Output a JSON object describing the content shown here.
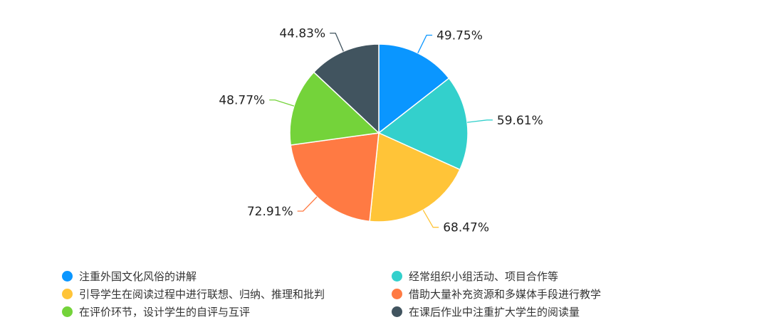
{
  "chart_data": {
    "type": "pie",
    "legend_position": "bottom",
    "series": [
      {
        "name": "注重外国文化风俗的讲解",
        "value": 49.75,
        "label": "49.75%",
        "color": "#0a96ff"
      },
      {
        "name": "经常组织小组活动、项目合作等",
        "value": 59.61,
        "label": "59.61%",
        "color": "#33d0cc"
      },
      {
        "name": "引导学生在阅读过程中进行联想、归纳、推理和批判",
        "value": 68.47,
        "label": "68.47%",
        "color": "#ffc438"
      },
      {
        "name": "借助大量补充资源和多媒体手段进行教学",
        "value": 72.91,
        "label": "72.91%",
        "color": "#ff7a43"
      },
      {
        "name": "在评价环节，设计学生的自评与互评",
        "value": 48.77,
        "label": "48.77%",
        "color": "#74d33a"
      },
      {
        "name": "在课后作业中注重扩大学生的阅读量",
        "value": 44.83,
        "label": "44.83%",
        "color": "#41545f"
      }
    ]
  }
}
